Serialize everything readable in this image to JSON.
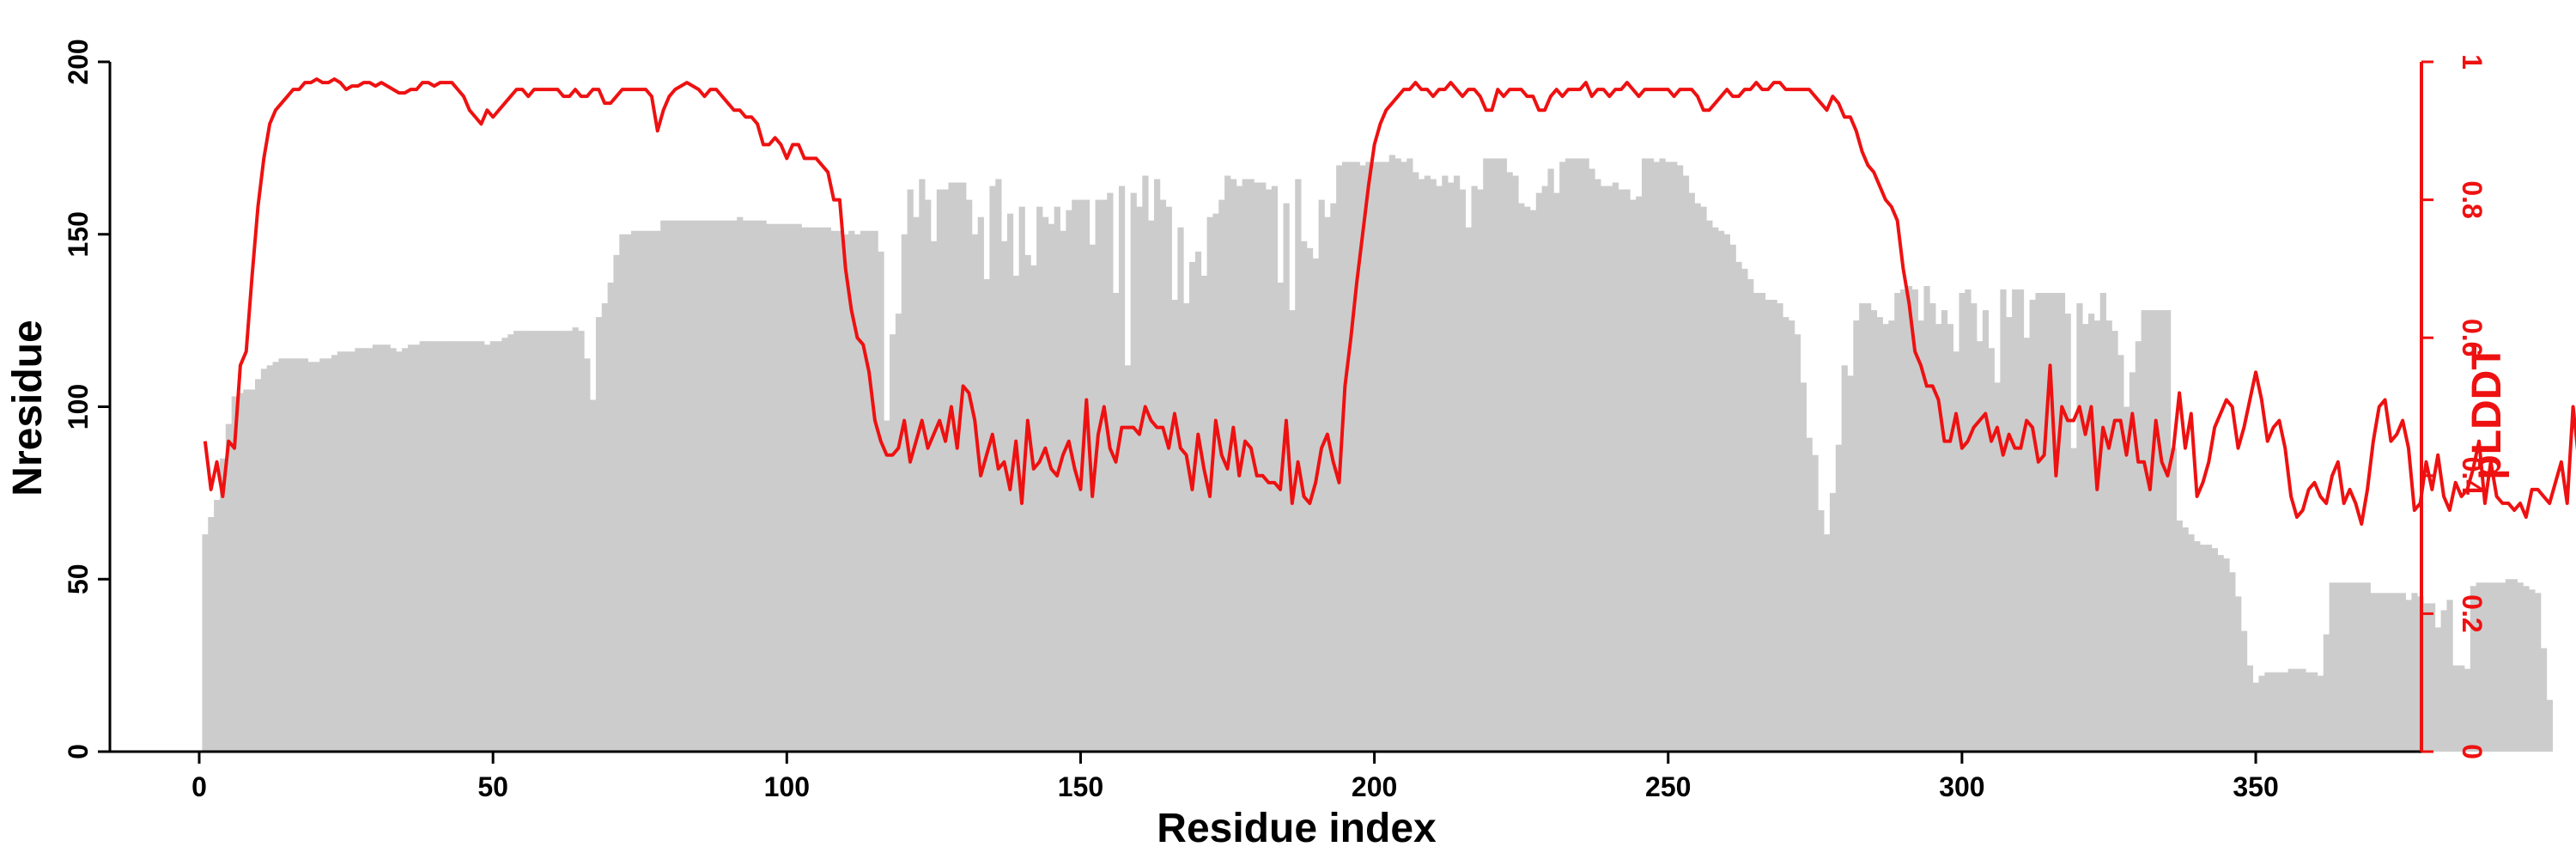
{
  "chart_data": {
    "type": "bar",
    "title": "",
    "xlabel": "Residue index",
    "ylabel": "Nresidue",
    "y2label": "pLDDT",
    "xlim": [
      0,
      374
    ],
    "ylim": [
      0,
      200
    ],
    "y2lim": [
      0,
      1
    ],
    "x_ticks": [
      "0",
      "50",
      "100",
      "150",
      "200",
      "250",
      "300",
      "350"
    ],
    "y_ticks": [
      "0",
      "50",
      "100",
      "150",
      "200"
    ],
    "y2_ticks": [
      "0",
      "0.2",
      "0.4",
      "0.6",
      "0.8",
      "1"
    ],
    "grid": false,
    "legend": "none",
    "colors": {
      "bars": "#cccccc",
      "plddt_line": "#ee1111",
      "axis": "#000000",
      "y2_axis": "#ee1111"
    },
    "series": [
      {
        "type": "bar",
        "axis": "left",
        "x_start": 1,
        "values": [
          63,
          68,
          73,
          85,
          95,
          103,
          104,
          105,
          105,
          108,
          111,
          112,
          113,
          114,
          114,
          114,
          114,
          114,
          113,
          113,
          114,
          114,
          115,
          116,
          116,
          116,
          117,
          117,
          117,
          118,
          118,
          118,
          117,
          116,
          117,
          118,
          118,
          119,
          119,
          119,
          119,
          119,
          119,
          119,
          119,
          119,
          119,
          119,
          118,
          119,
          119,
          120,
          121,
          122,
          122,
          122,
          122,
          122,
          122,
          122,
          122,
          122,
          122,
          123,
          122,
          114,
          102,
          126,
          130,
          136,
          144,
          150,
          150,
          151,
          151,
          151,
          151,
          151,
          154,
          154,
          154,
          154,
          154,
          154,
          154,
          154,
          154,
          154,
          154,
          154,
          154,
          155,
          154,
          154,
          154,
          154,
          153,
          153,
          153,
          153,
          153,
          153,
          152,
          152,
          152,
          152,
          152,
          151,
          151,
          150,
          151,
          150,
          151,
          151,
          151,
          145,
          96,
          121,
          127,
          150,
          163,
          155,
          166,
          160,
          148,
          163,
          163,
          165,
          165,
          165,
          160,
          150,
          155,
          137,
          164,
          166,
          148,
          156,
          138,
          158,
          144,
          141,
          158,
          155,
          153,
          158,
          151,
          157,
          160,
          160,
          160,
          147,
          160,
          160,
          162,
          133,
          164,
          112,
          162,
          158,
          167,
          154,
          166,
          160,
          158,
          131,
          152,
          130,
          142,
          145,
          138,
          155,
          156,
          160,
          167,
          166,
          164,
          166,
          166,
          165,
          165,
          163,
          164,
          136,
          159,
          128,
          166,
          148,
          146,
          143,
          160,
          155,
          159,
          170,
          171,
          171,
          171,
          170,
          171,
          171,
          171,
          171,
          173,
          172,
          171,
          172,
          168,
          166,
          167,
          166,
          164,
          167,
          165,
          167,
          163,
          152,
          164,
          163,
          172,
          172,
          172,
          172,
          168,
          167,
          159,
          158,
          157,
          162,
          164,
          169,
          162,
          171,
          172,
          172,
          172,
          172,
          169,
          166,
          164,
          164,
          165,
          163,
          163,
          160,
          161,
          172,
          172,
          171,
          172,
          171,
          171,
          170,
          167,
          162,
          159,
          158,
          154,
          152,
          151,
          150,
          147,
          142,
          140,
          137,
          133,
          133,
          131,
          131,
          130,
          126,
          125,
          121,
          107,
          91,
          86,
          70,
          63,
          75,
          89,
          112,
          109,
          125,
          130,
          130,
          128,
          126,
          124,
          125,
          133,
          134,
          135,
          134,
          125,
          135,
          130,
          124,
          128,
          124,
          116,
          133,
          134,
          130,
          119,
          128,
          117,
          107,
          134,
          126,
          134,
          134,
          120,
          131,
          133,
          133,
          133,
          133,
          133,
          127,
          88,
          130,
          124,
          127,
          125,
          133,
          125,
          122,
          115,
          100,
          110,
          119,
          128,
          128,
          128,
          128,
          128,
          88,
          67,
          65,
          63,
          61,
          60,
          60,
          59,
          57,
          56,
          52,
          45,
          35,
          25,
          20,
          22,
          23,
          23,
          23,
          23,
          24,
          24,
          24,
          23,
          23,
          22,
          34,
          49,
          49,
          49,
          49,
          49,
          49,
          49,
          46,
          46,
          46,
          46,
          46,
          46,
          44,
          46,
          45,
          43,
          43,
          36,
          41,
          44,
          25,
          25,
          24,
          48,
          49,
          49,
          49,
          49,
          49,
          50,
          50,
          49,
          48,
          47,
          46,
          30,
          15
        ],
        "name": ""
      },
      {
        "type": "line",
        "axis": "right",
        "x_start": 1,
        "values": [
          0.45,
          0.38,
          0.42,
          0.37,
          0.45,
          0.44,
          0.56,
          0.58,
          0.69,
          0.79,
          0.86,
          0.91,
          0.93,
          0.94,
          0.95,
          0.96,
          0.96,
          0.97,
          0.97,
          0.975,
          0.97,
          0.97,
          0.975,
          0.97,
          0.96,
          0.965,
          0.965,
          0.97,
          0.97,
          0.965,
          0.97,
          0.965,
          0.96,
          0.955,
          0.955,
          0.96,
          0.96,
          0.97,
          0.97,
          0.965,
          0.97,
          0.97,
          0.97,
          0.96,
          0.95,
          0.93,
          0.92,
          0.91,
          0.93,
          0.92,
          0.93,
          0.94,
          0.95,
          0.96,
          0.96,
          0.95,
          0.96,
          0.96,
          0.96,
          0.96,
          0.96,
          0.95,
          0.95,
          0.96,
          0.95,
          0.95,
          0.96,
          0.96,
          0.94,
          0.94,
          0.95,
          0.96,
          0.96,
          0.96,
          0.96,
          0.96,
          0.95,
          0.9,
          0.93,
          0.95,
          0.96,
          0.965,
          0.97,
          0.965,
          0.96,
          0.95,
          0.96,
          0.96,
          0.95,
          0.94,
          0.93,
          0.93,
          0.92,
          0.92,
          0.91,
          0.88,
          0.88,
          0.89,
          0.88,
          0.86,
          0.88,
          0.88,
          0.86,
          0.86,
          0.86,
          0.85,
          0.84,
          0.8,
          0.8,
          0.7,
          0.64,
          0.6,
          0.59,
          0.55,
          0.48,
          0.45,
          0.43,
          0.43,
          0.44,
          0.48,
          0.42,
          0.45,
          0.48,
          0.44,
          0.46,
          0.48,
          0.45,
          0.5,
          0.44,
          0.53,
          0.52,
          0.48,
          0.4,
          0.43,
          0.46,
          0.41,
          0.42,
          0.38,
          0.45,
          0.36,
          0.48,
          0.41,
          0.42,
          0.44,
          0.41,
          0.4,
          0.43,
          0.45,
          0.41,
          0.38,
          0.51,
          0.37,
          0.46,
          0.5,
          0.44,
          0.42,
          0.47,
          0.47,
          0.47,
          0.46,
          0.5,
          0.48,
          0.47,
          0.47,
          0.44,
          0.49,
          0.44,
          0.43,
          0.38,
          0.46,
          0.41,
          0.37,
          0.48,
          0.43,
          0.41,
          0.47,
          0.4,
          0.45,
          0.44,
          0.4,
          0.4,
          0.39,
          0.39,
          0.38,
          0.48,
          0.36,
          0.42,
          0.37,
          0.36,
          0.39,
          0.44,
          0.46,
          0.42,
          0.39,
          0.53,
          0.6,
          0.68,
          0.75,
          0.82,
          0.88,
          0.91,
          0.93,
          0.94,
          0.95,
          0.96,
          0.96,
          0.97,
          0.96,
          0.96,
          0.95,
          0.96,
          0.96,
          0.97,
          0.96,
          0.95,
          0.96,
          0.96,
          0.95,
          0.93,
          0.93,
          0.96,
          0.95,
          0.96,
          0.96,
          0.96,
          0.95,
          0.95,
          0.93,
          0.93,
          0.95,
          0.96,
          0.95,
          0.96,
          0.96,
          0.96,
          0.97,
          0.95,
          0.96,
          0.96,
          0.95,
          0.96,
          0.96,
          0.97,
          0.96,
          0.95,
          0.96,
          0.96,
          0.96,
          0.96,
          0.96,
          0.95,
          0.96,
          0.96,
          0.96,
          0.95,
          0.93,
          0.93,
          0.94,
          0.95,
          0.96,
          0.95,
          0.95,
          0.96,
          0.96,
          0.97,
          0.96,
          0.96,
          0.97,
          0.97,
          0.96,
          0.96,
          0.96,
          0.96,
          0.96,
          0.95,
          0.94,
          0.93,
          0.95,
          0.94,
          0.92,
          0.92,
          0.9,
          0.87,
          0.85,
          0.84,
          0.82,
          0.8,
          0.79,
          0.77,
          0.7,
          0.65,
          0.58,
          0.56,
          0.53,
          0.53,
          0.51,
          0.45,
          0.45,
          0.49,
          0.44,
          0.45,
          0.47,
          0.48,
          0.49,
          0.45,
          0.47,
          0.43,
          0.46,
          0.44,
          0.44,
          0.48,
          0.47,
          0.42,
          0.43,
          0.56,
          0.4,
          0.5,
          0.48,
          0.48,
          0.5,
          0.46,
          0.5,
          0.38,
          0.47,
          0.44,
          0.48,
          0.48,
          0.43,
          0.49,
          0.42,
          0.42,
          0.38,
          0.48,
          0.42,
          0.4,
          0.44,
          0.52,
          0.44,
          0.49,
          0.37,
          0.39,
          0.42,
          0.47,
          0.49,
          0.51,
          0.5,
          0.44,
          0.47,
          0.51,
          0.55,
          0.51,
          0.45,
          0.47,
          0.48,
          0.44,
          0.37,
          0.34,
          0.35,
          0.38,
          0.39,
          0.37,
          0.36,
          0.4,
          0.42,
          0.36,
          0.38,
          0.36,
          0.33,
          0.38,
          0.45,
          0.5,
          0.51,
          0.45,
          0.46,
          0.48,
          0.44,
          0.35,
          0.36,
          0.42,
          0.38,
          0.43,
          0.37,
          0.35,
          0.39,
          0.37,
          0.38,
          0.41,
          0.45,
          0.36,
          0.42,
          0.37,
          0.36,
          0.36,
          0.35,
          0.36,
          0.34,
          0.38,
          0.38,
          0.37,
          0.36,
          0.39,
          0.42,
          0.36,
          0.5,
          0.42,
          0.47,
          0.36,
          0.48,
          0.32,
          0.42,
          0.44,
          0.49,
          0.38,
          0.47,
          0.37,
          0.48,
          0.43,
          0.37,
          0.54,
          0.39,
          0.5,
          0.54,
          0.48,
          0.54,
          0.52,
          0.39
        ],
        "name": ""
      }
    ]
  }
}
